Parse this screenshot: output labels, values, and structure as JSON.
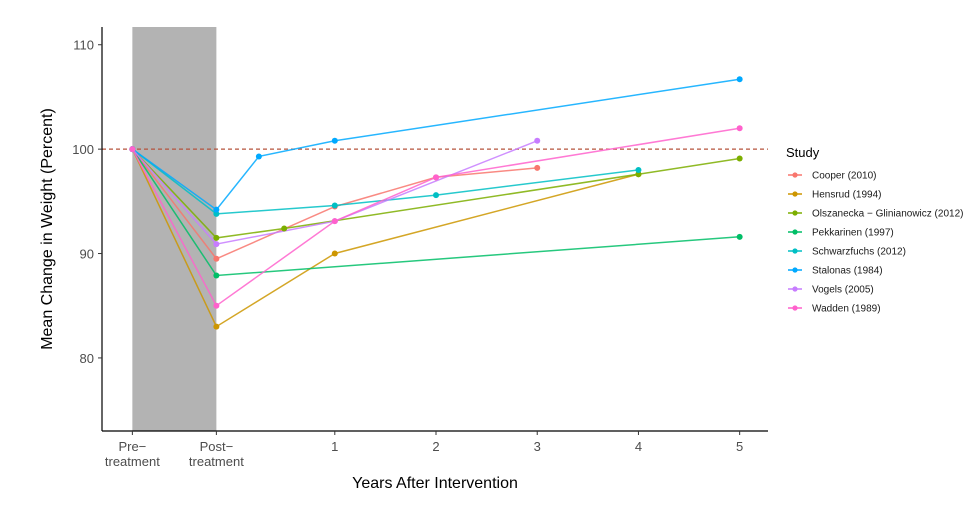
{
  "chart_data": {
    "type": "line",
    "xlabel": "Years After Intervention",
    "ylabel": "Mean Change in Weight (Percent)",
    "x_ticks": [
      {
        "pos": -1.0,
        "label": [
          "Pre−",
          "treatment"
        ]
      },
      {
        "pos": -0.17,
        "label": [
          "Post−",
          "treatment"
        ]
      },
      {
        "pos": 1,
        "label": [
          "1"
        ]
      },
      {
        "pos": 2,
        "label": [
          "2"
        ]
      },
      {
        "pos": 3,
        "label": [
          "3"
        ]
      },
      {
        "pos": 4,
        "label": [
          "4"
        ]
      },
      {
        "pos": 5,
        "label": [
          "5"
        ]
      }
    ],
    "y_ticks": [
      80,
      90,
      100,
      110
    ],
    "xlim": [
      -1.3,
      5.28
    ],
    "ylim": [
      73,
      111.7
    ],
    "shaded_region": {
      "x": [
        -1.0,
        -0.17
      ],
      "color": "#b3b3b3"
    },
    "reference_line": {
      "y": 100,
      "color": "#b5533c",
      "dashed": true
    },
    "legend": {
      "title": "Study",
      "placement": "right"
    },
    "series": [
      {
        "name": "Cooper (2010)",
        "color": "#F8766D",
        "points": [
          [
            -1,
            100
          ],
          [
            -0.17,
            89.5
          ],
          [
            1,
            94.5
          ],
          [
            2,
            97.3
          ],
          [
            3,
            98.2
          ]
        ]
      },
      {
        "name": "Hensrud (1994)",
        "color": "#CD9600",
        "points": [
          [
            -1,
            100
          ],
          [
            -0.17,
            83
          ],
          [
            1,
            90
          ],
          [
            4,
            97.6
          ]
        ]
      },
      {
        "name": "Olszanecka − Glinianowicz (2012)",
        "color": "#7CAE00",
        "points": [
          [
            -1,
            100
          ],
          [
            -0.17,
            91.5
          ],
          [
            0.5,
            92.4
          ],
          [
            4,
            97.6
          ],
          [
            5,
            99.1
          ]
        ]
      },
      {
        "name": "Pekkarinen (1997)",
        "color": "#00BE67",
        "points": [
          [
            -1,
            100
          ],
          [
            -0.17,
            87.9
          ],
          [
            5,
            91.6
          ]
        ]
      },
      {
        "name": "Schwarzfuchs (2012)",
        "color": "#00BFC4",
        "points": [
          [
            -1,
            100
          ],
          [
            -0.17,
            93.8
          ],
          [
            1,
            94.6
          ],
          [
            2,
            95.6
          ],
          [
            4,
            98
          ]
        ]
      },
      {
        "name": "Stalonas (1984)",
        "color": "#00A9FF",
        "points": [
          [
            -1,
            100
          ],
          [
            -0.17,
            94.2
          ],
          [
            0.25,
            99.3
          ],
          [
            1,
            100.8
          ],
          [
            5,
            106.7
          ]
        ]
      },
      {
        "name": "Vogels (2005)",
        "color": "#C77CFF",
        "points": [
          [
            -1,
            100
          ],
          [
            -0.17,
            90.9
          ],
          [
            1,
            93.1
          ],
          [
            3,
            100.8
          ]
        ]
      },
      {
        "name": "Wadden (1989)",
        "color": "#FF61CC",
        "points": [
          [
            -1,
            100
          ],
          [
            -0.17,
            85
          ],
          [
            1,
            93.1
          ],
          [
            2,
            97.3
          ],
          [
            5,
            102
          ]
        ]
      }
    ]
  }
}
